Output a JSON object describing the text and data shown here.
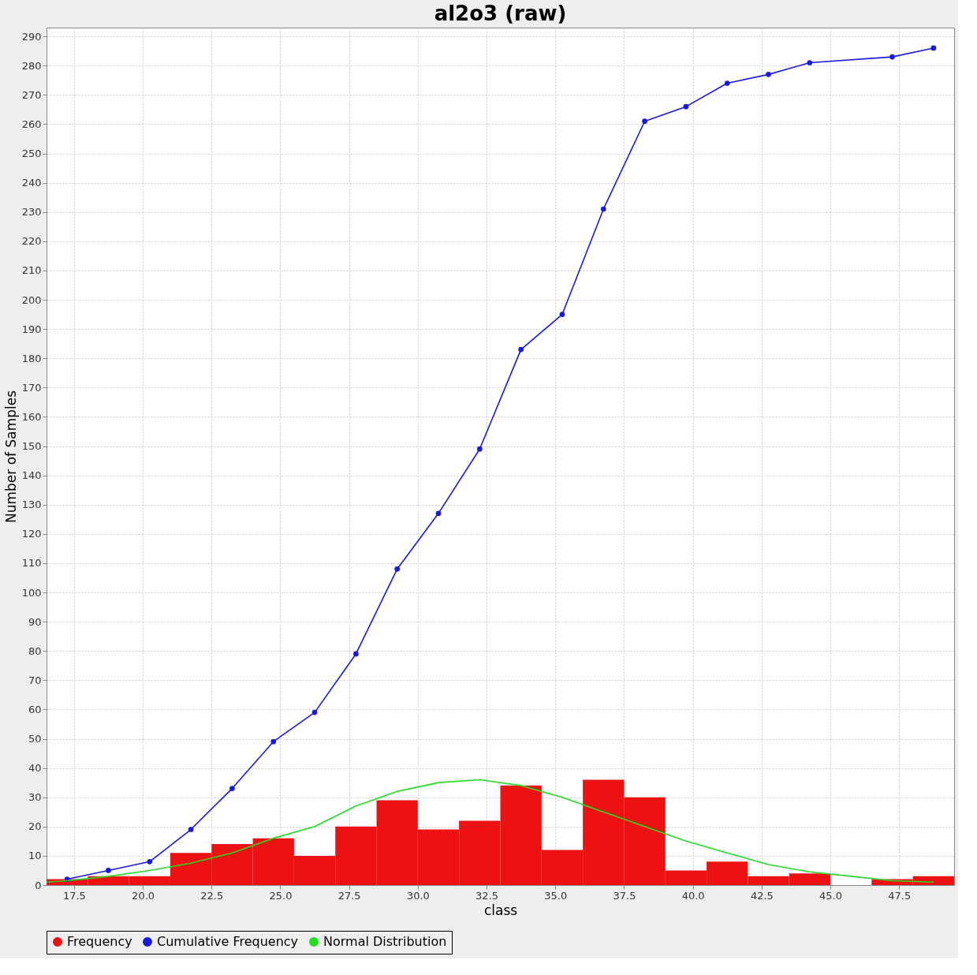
{
  "chart_data": {
    "type": "histogram",
    "title": "al2o3 (raw)",
    "xlabel": "class",
    "ylabel": "Number of Samples",
    "bins": [
      16.5,
      18,
      19.5,
      21,
      22.5,
      24,
      25.5,
      27,
      28.5,
      30,
      31.5,
      33,
      34.5,
      36,
      37.5,
      39,
      40.5,
      42,
      43.5,
      45,
      46.5,
      48,
      49.5
    ],
    "series": [
      {
        "name": "Frequency",
        "color": "#ee1111",
        "values": [
          2,
          3,
          3,
          11,
          14,
          16,
          10,
          20,
          29,
          19,
          22,
          34,
          12,
          36,
          30,
          5,
          8,
          3,
          4,
          0,
          2,
          3
        ]
      },
      {
        "name": "Cumulative Frequency",
        "type": "line",
        "marker": "circle",
        "color": "#1a1adf",
        "x": [
          17.25,
          18.75,
          20.25,
          21.75,
          23.25,
          24.75,
          26.25,
          27.75,
          29.25,
          30.75,
          32.25,
          33.75,
          35.25,
          36.75,
          38.25,
          39.75,
          41.25,
          42.75,
          44.25,
          47.25,
          48.75
        ],
        "values": [
          2,
          5,
          8,
          19,
          33,
          49,
          59,
          79,
          108,
          127,
          149,
          183,
          195,
          231,
          261,
          266,
          274,
          277,
          281,
          283,
          286
        ]
      },
      {
        "name": "Normal Distribution",
        "type": "line",
        "marker": "none",
        "color": "#22dd22",
        "x": [
          16.5,
          17.25,
          18.75,
          20.25,
          21.75,
          23.25,
          24.75,
          26.25,
          27.75,
          29.25,
          30.75,
          32.25,
          33.75,
          35.25,
          36.75,
          38.25,
          39.75,
          41.25,
          42.75,
          44.25,
          45.75,
          47.25,
          48.75
        ],
        "values": [
          1,
          1.5,
          3,
          5,
          7.5,
          11,
          16,
          20,
          27,
          32,
          35,
          36,
          34,
          30,
          25,
          20,
          15,
          11,
          7,
          4.5,
          3,
          1.5,
          1
        ]
      }
    ],
    "xlim": [
      16.5,
      49.5
    ],
    "xticks": [
      {
        "value": 17.5,
        "label": "17.5"
      },
      {
        "value": 20,
        "label": "20.0"
      },
      {
        "value": 22.5,
        "label": "22.5"
      },
      {
        "value": 25,
        "label": "25.0"
      },
      {
        "value": 27.5,
        "label": "27.5"
      },
      {
        "value": 30,
        "label": "30.0"
      },
      {
        "value": 32.5,
        "label": "32.5"
      },
      {
        "value": 35,
        "label": "35.0"
      },
      {
        "value": 37.5,
        "label": "37.5"
      },
      {
        "value": 40,
        "label": "40.0"
      },
      {
        "value": 42.5,
        "label": "42.5"
      },
      {
        "value": 45,
        "label": "45.0"
      },
      {
        "value": 47.5,
        "label": "47.5"
      }
    ],
    "ylim": [
      0,
      293
    ],
    "yticks": [
      0,
      10,
      20,
      30,
      40,
      50,
      60,
      70,
      80,
      90,
      100,
      110,
      120,
      130,
      140,
      150,
      160,
      170,
      180,
      190,
      200,
      210,
      220,
      230,
      240,
      250,
      260,
      270,
      280,
      290
    ],
    "grid": true,
    "legend": "bottom"
  }
}
